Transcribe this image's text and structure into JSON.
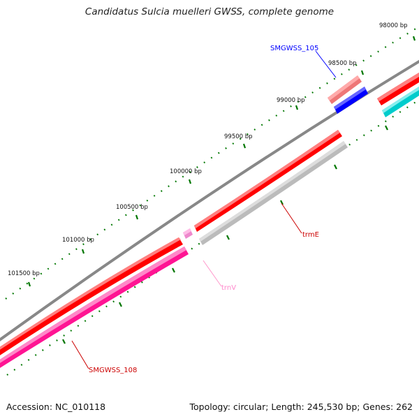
{
  "title": "Candidatus Sulcia muelleri GWSS, complete genome",
  "footer": {
    "accession": "Accession: NC_010118",
    "summary": "Topology: circular; Length: 245,530 bp; Genes: 262"
  },
  "ticks": [
    "98000 bp",
    "98500 bp",
    "99000 bp",
    "99500 bp",
    "100000 bp",
    "100500 bp",
    "101000 bp",
    "101500 bp"
  ],
  "features": [
    {
      "name": "SMGWSS_105",
      "label": "SMGWSS_105",
      "color": "#0000ff",
      "fill": "#ee7777"
    },
    {
      "name": "trmE",
      "label": "trmE",
      "color": "#cc0000"
    },
    {
      "name": "trnV",
      "label": "trnV",
      "color": "#ff88cc"
    },
    {
      "name": "SMGWSS_108",
      "label": "SMGWSS_108",
      "color": "#cc0000"
    }
  ],
  "colors": {
    "backbone": "#888888",
    "forward": "#ff0000",
    "reverse": "#ff1493",
    "blue_gene": "#0000ff",
    "cyan_gene": "#00cccc",
    "grey_gene": "#bbbbbb",
    "tick": "#006600"
  }
}
